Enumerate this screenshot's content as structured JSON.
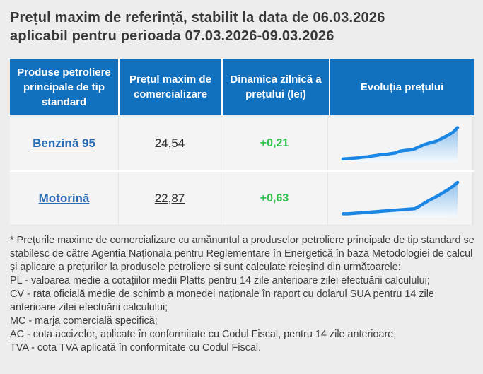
{
  "title": {
    "line1": "Prețul maxim de referință, stabilit la data de 06.03.2026",
    "line2": "aplicabil pentru perioada 07.03.2026-09.03.2026"
  },
  "table": {
    "headers": [
      "Produse petroliere principale de tip standard",
      "Prețul maxim de comercializare",
      "Dinamica zilnică a prețului (lei)",
      "Evoluția prețului"
    ],
    "rows": [
      {
        "product": "Benzină 95",
        "max_price": "24,54",
        "daily_change": "+0,21"
      },
      {
        "product": "Motorină",
        "max_price": "22,87",
        "daily_change": "+0,63"
      }
    ]
  },
  "chart_data": [
    {
      "type": "area",
      "name": "Benzină 95 — evoluția prețului (sparkline, fără axe)",
      "x": "timp (zile, de la stânga la dreapta)",
      "values": [
        8,
        9,
        10,
        11,
        13,
        14,
        16,
        18,
        20,
        21,
        23,
        25,
        30,
        32,
        33,
        36,
        42,
        48,
        52,
        55,
        60,
        67,
        74,
        82,
        95
      ],
      "value_scale": "relativ 0-100 (grafic fără etichete numerice)",
      "legend": "none",
      "grid": false
    },
    {
      "type": "area",
      "name": "Motorină — evoluția prețului (sparkline, fără axe)",
      "x": "timp (zile, de la stânga la dreapta)",
      "values": [
        9,
        9,
        10,
        11,
        12,
        13,
        14,
        15,
        16,
        17,
        18,
        19,
        20,
        21,
        22,
        23,
        30,
        38,
        46,
        53,
        60,
        68,
        76,
        85,
        96
      ],
      "value_scale": "relativ 0-100 (grafic fără etichete numerice)",
      "legend": "none",
      "grid": false
    }
  ],
  "footer": {
    "note_lines": [
      "* Prețurile maxime de comercializare cu amănuntul a produselor petroliere principale de tip standard se stabilesc de către Agenția Naționala pentru Reglementare în Energetică în baza Metodologiei de calcul și aplicare a prețurilor la produsele petroliere și sunt calculate reieșind din următoarele:",
      "PL - valoarea medie a cotațiilor medii Platts pentru 14 zile anterioare zilei efectuării calculului;",
      "CV - rata oficială medie de schimb a monedei naționale în raport cu dolarul SUA pentru 14 zile anterioare zilei efectuării calculului;",
      "MC - marja comercială specifică;",
      "AC - cota accizelor, aplicate în conformitate cu Codul Fiscal, pentru 14 zile anterioare;",
      "TVA - cota TVA aplicată în conformitate cu Codul Fiscal."
    ]
  },
  "colors": {
    "header_blue": "#1271bf",
    "link_blue": "#2a6db5",
    "change_green": "#33c24d",
    "spark_line": "#1b86e3",
    "spark_fill_top": "#8fc0ec",
    "spark_fill_bottom": "#f4f9fd",
    "page_background": "#ededed",
    "row_background": "#f4f4f4"
  }
}
